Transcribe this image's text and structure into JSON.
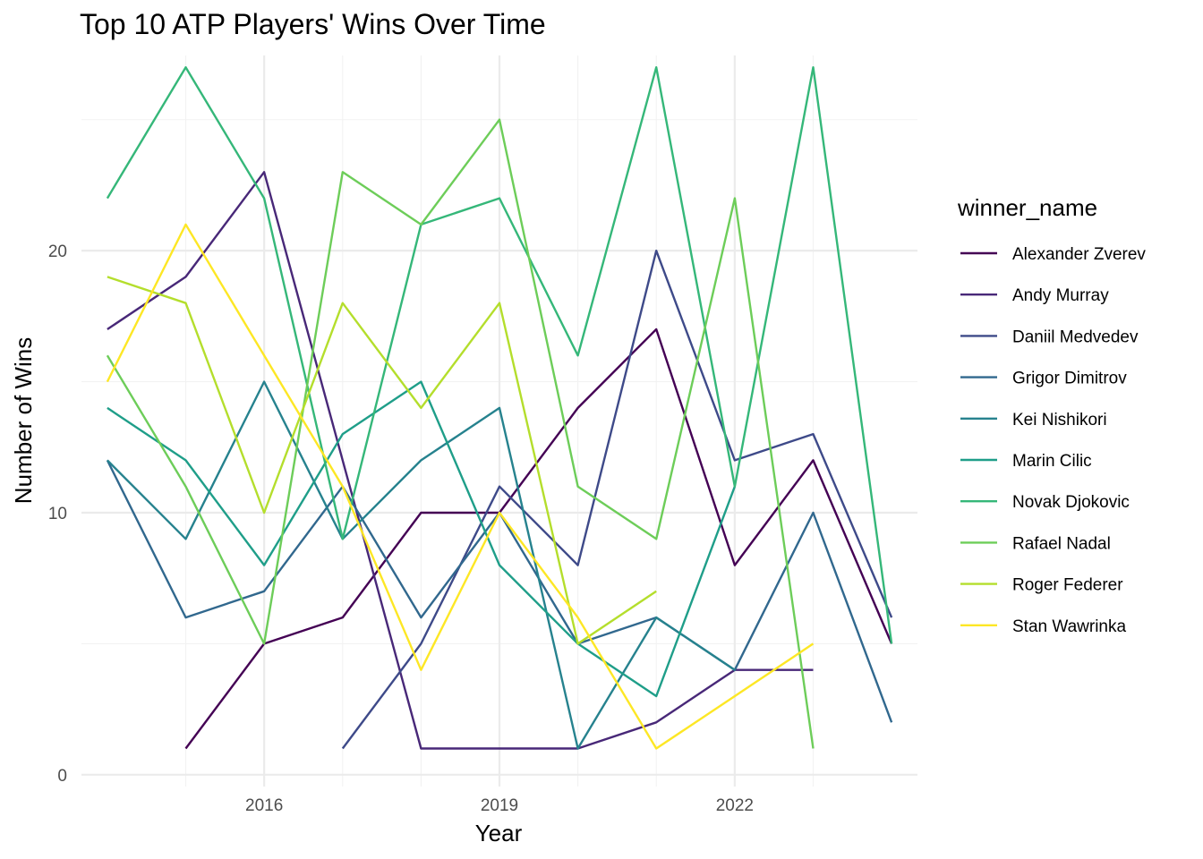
{
  "chart_data": {
    "type": "line",
    "title": "Top 10 ATP Players' Wins Over Time",
    "xlabel": "Year",
    "ylabel": "Number of Wins",
    "xlim": [
      2014.0,
      2024.0
    ],
    "ylim": [
      0,
      28
    ],
    "x_ticks": [
      2016,
      2019,
      2022
    ],
    "x_minor_ticks": [
      2015,
      2017,
      2018,
      2020,
      2021,
      2023
    ],
    "y_ticks": [
      0,
      10,
      20
    ],
    "y_minor_ticks": [
      5,
      15,
      25
    ],
    "grid": true,
    "legend": {
      "title": "winner_name",
      "position": "right"
    },
    "series": [
      {
        "name": "Alexander Zverev",
        "color": "#440154",
        "x": [
          2015,
          2016,
          2017,
          2018,
          2019,
          2020,
          2021,
          2022,
          2023,
          2024
        ],
        "y": [
          1,
          5,
          6,
          10,
          10,
          14,
          17,
          8,
          12,
          5
        ]
      },
      {
        "name": "Andy Murray",
        "color": "#482878",
        "x": [
          2014,
          2015,
          2016,
          2017,
          2018,
          2019,
          2020,
          2021,
          2022,
          2023
        ],
        "y": [
          17,
          19,
          23,
          12,
          1,
          1,
          1,
          2,
          4,
          4
        ]
      },
      {
        "name": "Daniil Medvedev",
        "color": "#3E4A89",
        "x": [
          2017,
          2018,
          2019,
          2020,
          2021,
          2022,
          2023,
          2024
        ],
        "y": [
          1,
          5,
          11,
          8,
          20,
          12,
          13,
          6
        ]
      },
      {
        "name": "Grigor Dimitrov",
        "color": "#31688E",
        "x": [
          2014,
          2015,
          2016,
          2017,
          2018,
          2019,
          2020,
          2021,
          2022,
          2023,
          2024
        ],
        "y": [
          12,
          6,
          7,
          11,
          6,
          10,
          5,
          6,
          4,
          10,
          2
        ]
      },
      {
        "name": "Kei Nishikori",
        "color": "#26828E",
        "x": [
          2014,
          2015,
          2016,
          2017,
          2018,
          2019,
          2020,
          2021,
          2022
        ],
        "y": [
          12,
          9,
          15,
          9,
          12,
          14,
          1,
          6,
          4
        ]
      },
      {
        "name": "Marin Cilic",
        "color": "#1F9E89",
        "x": [
          2014,
          2015,
          2016,
          2017,
          2018,
          2019,
          2020,
          2021,
          2022
        ],
        "y": [
          14,
          12,
          8,
          13,
          15,
          8,
          5,
          3,
          11
        ]
      },
      {
        "name": "Novak Djokovic",
        "color": "#35B779",
        "x": [
          2014,
          2015,
          2016,
          2017,
          2018,
          2019,
          2020,
          2021,
          2022,
          2023,
          2024
        ],
        "y": [
          22,
          27,
          22,
          9,
          21,
          22,
          16,
          27,
          11,
          27,
          5
        ]
      },
      {
        "name": "Rafael Nadal",
        "color": "#6DCD59",
        "x": [
          2014,
          2015,
          2016,
          2017,
          2018,
          2019,
          2020,
          2021,
          2022,
          2023
        ],
        "y": [
          16,
          11,
          5,
          23,
          21,
          25,
          11,
          9,
          22,
          1
        ]
      },
      {
        "name": "Roger Federer",
        "color": "#B4DE2C",
        "x": [
          2014,
          2015,
          2016,
          2017,
          2018,
          2019,
          2020,
          2021
        ],
        "y": [
          19,
          18,
          10,
          18,
          14,
          18,
          5,
          7
        ]
      },
      {
        "name": "Stan Wawrinka",
        "color": "#FDE725",
        "x": [
          2014,
          2015,
          2016,
          2017,
          2018,
          2019,
          2020,
          2021,
          2022,
          2023
        ],
        "y": [
          15,
          21,
          16,
          11,
          4,
          10,
          6,
          1,
          3,
          5
        ]
      }
    ]
  }
}
